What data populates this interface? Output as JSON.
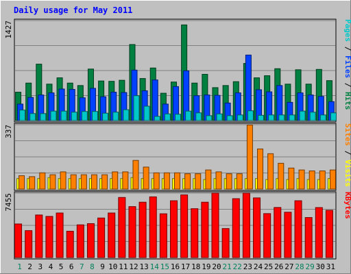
{
  "chart_data": {
    "type": "bar",
    "title": "Daily usage for May 2011",
    "days": [
      1,
      2,
      3,
      4,
      5,
      6,
      7,
      8,
      9,
      10,
      11,
      12,
      13,
      14,
      15,
      16,
      17,
      18,
      19,
      20,
      21,
      22,
      23,
      24,
      25,
      26,
      27,
      28,
      29,
      30,
      31
    ],
    "weekend_days": [
      1,
      7,
      8,
      14,
      15,
      21,
      22,
      28,
      29
    ],
    "panels": [
      {
        "key": "hits_files_pages",
        "ymax": 1427,
        "ymax_label": "1427",
        "legend": [
          {
            "text": "Pages",
            "color": "#00c8c8"
          },
          {
            "text": " / ",
            "color": "#000000"
          },
          {
            "text": "Files",
            "color": "#0040ff"
          },
          {
            "text": " / ",
            "color": "#000000"
          },
          {
            "text": "Hits",
            "color": "#008040"
          }
        ],
        "series": [
          {
            "name": "Hits",
            "color": "#008040",
            "values": [
              405,
              535,
              805,
              520,
              610,
              535,
              500,
              735,
              565,
              560,
              575,
              1085,
              600,
              750,
              390,
              550,
              1365,
              535,
              660,
              470,
              500,
              555,
              815,
              610,
              640,
              740,
              520,
              725,
              520,
              730,
              570
            ]
          },
          {
            "name": "Files",
            "color": "#0040ff",
            "values": [
              235,
              330,
              365,
              395,
              450,
              445,
              325,
              460,
              340,
              405,
              400,
              720,
              425,
              580,
              235,
              485,
              710,
              355,
              365,
              360,
              250,
              395,
              935,
              440,
              410,
              500,
              260,
              395,
              365,
              345,
              270
            ]
          },
          {
            "name": "Pages",
            "color": "#00c8c8",
            "values": [
              150,
              100,
              100,
              135,
              135,
              120,
              130,
              130,
              105,
              120,
              155,
              355,
              205,
              60,
              95,
              90,
              135,
              110,
              70,
              95,
              70,
              80,
              140,
              75,
              80,
              80,
              80,
              135,
              120,
              80,
              110
            ]
          }
        ]
      },
      {
        "key": "visits_sites",
        "ymax": 337,
        "ymax_label": "337",
        "legend": [
          {
            "text": "Sites",
            "color": "#ff8000"
          },
          {
            "text": " / ",
            "color": "#000000"
          },
          {
            "text": "Visits",
            "color": "#ffff00"
          }
        ],
        "series": [
          {
            "name": "Visits",
            "color": "#ffff00",
            "values": [
              55,
              55,
              55,
              60,
              55,
              55,
              55,
              55,
              55,
              55,
              55,
              60,
              55,
              55,
              55,
              55,
              55,
              55,
              50,
              55,
              55,
              55,
              55,
              55,
              50,
              55,
              50,
              55,
              50,
              50,
              55
            ]
          },
          {
            "name": "Sites",
            "color": "#ff8000",
            "values": [
              70,
              65,
              85,
              75,
              90,
              75,
              75,
              75,
              75,
              90,
              90,
              150,
              115,
              85,
              85,
              85,
              80,
              80,
              100,
              90,
              80,
              80,
              335,
              210,
              185,
              135,
              110,
              100,
              95,
              95,
              100
            ]
          }
        ]
      },
      {
        "key": "kbytes",
        "ymax": 7455,
        "ymax_label": "7455",
        "legend": [
          {
            "text": "KBytes",
            "color": "#ff0000"
          }
        ],
        "series": [
          {
            "name": "KBytes",
            "color": "#ff0000",
            "values": [
              3890,
              3120,
              4930,
              4765,
              5160,
              3050,
              3790,
              3930,
              4580,
              5160,
              6960,
              5900,
              6410,
              7030,
              5070,
              6580,
              7260,
              5660,
              6410,
              7455,
              3360,
              6820,
              7455,
              6910,
              5090,
              5800,
              5250,
              6580,
              4635,
              5790,
              5470
            ]
          }
        ]
      }
    ]
  }
}
